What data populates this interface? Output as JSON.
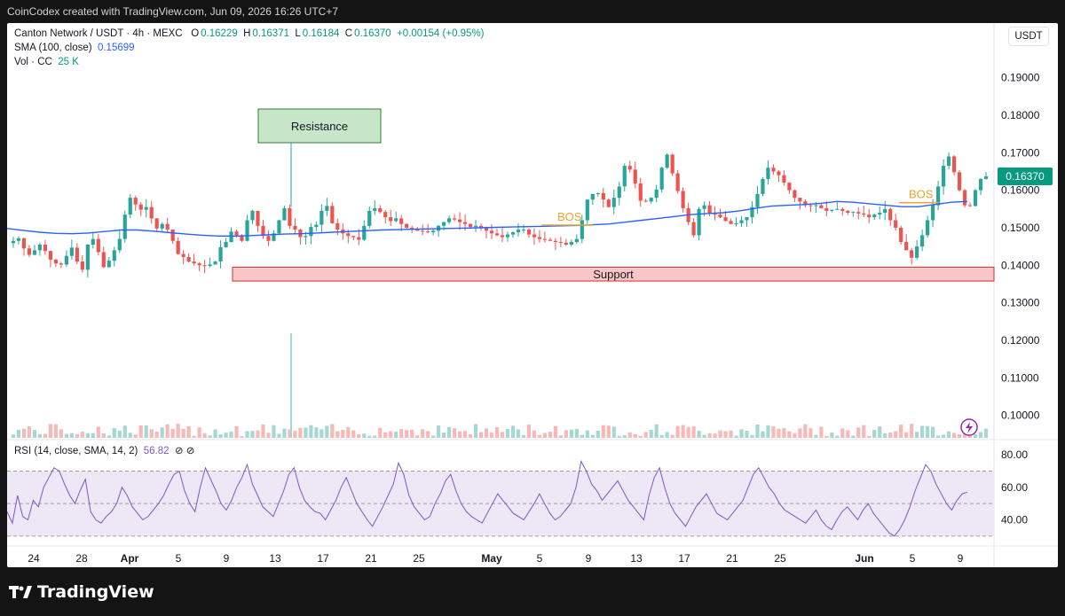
{
  "header": {
    "credit": "CoinCodex created with TradingView.com, Jun 09, 2026 16:26 UTC+7"
  },
  "legend": {
    "symbol": "Canton Network / USDT · 4h · MEXC",
    "o_label": "O",
    "o": "0.16229",
    "h_label": "H",
    "h": "0.16371",
    "l_label": "L",
    "l": "0.16184",
    "c_label": "C",
    "c": "0.16370",
    "change": "+0.00154 (+0.95%)",
    "sma_label": "SMA (100, close)",
    "sma_value": "0.15699",
    "vol_label": "Vol · CC",
    "vol_value": "25 K"
  },
  "currency": "USDT",
  "rsi_legend": {
    "label": "RSI (14, close, SMA, 14, 2)",
    "value": "56.82",
    "icons": "⊘ ⊘"
  },
  "annotations": {
    "resistance": "Resistance",
    "support": "Support",
    "bos1": "BOS",
    "bos2": "BOS"
  },
  "brand": "TradingView",
  "colors": {
    "up": "#26a69a",
    "down": "#ef5350",
    "sma": "#2962ff",
    "rsi": "#7e57c2",
    "rsi_band": "#ede7f6",
    "resistance_fill": "#c8e6c9",
    "resistance_border": "#2e7d32",
    "support_fill": "#f8c6c6",
    "support_border": "#d32f2f",
    "bos": "#f0a32b",
    "price_badge": "#089981"
  },
  "chart_data": [
    {
      "type": "candlestick",
      "title": "Canton Network / USDT · 4h · MEXC",
      "ylim": [
        0.094,
        0.197
      ],
      "y_ticks": [
        "0.19000",
        "0.18000",
        "0.17000",
        "0.16000",
        "0.15000",
        "0.14000",
        "0.13000",
        "0.12000",
        "0.11000",
        "0.10000"
      ],
      "x_ticks": [
        "24",
        "28",
        "Apr",
        "5",
        "9",
        "13",
        "17",
        "21",
        "25",
        "May",
        "5",
        "9",
        "13",
        "17",
        "21",
        "25",
        "Jun",
        "5",
        "9"
      ],
      "last_price_label": "0.16370",
      "close_path": [
        0.1465,
        0.1472,
        0.1445,
        0.1428,
        0.144,
        0.1455,
        0.1438,
        0.1415,
        0.1405,
        0.1402,
        0.1425,
        0.1447,
        0.141,
        0.1388,
        0.1455,
        0.147,
        0.1435,
        0.1395,
        0.1412,
        0.144,
        0.147,
        0.1535,
        0.158,
        0.1562,
        0.1548,
        0.1555,
        0.1525,
        0.1498,
        0.151,
        0.1495,
        0.1465,
        0.143,
        0.1422,
        0.141,
        0.1405,
        0.14,
        0.1398,
        0.1402,
        0.141,
        0.1448,
        0.1462,
        0.149,
        0.148,
        0.1465,
        0.152,
        0.1545,
        0.1505,
        0.1478,
        0.1465,
        0.1485,
        0.152,
        0.1552,
        0.1505,
        0.1495,
        0.1475,
        0.1478,
        0.1502,
        0.1508,
        0.1545,
        0.1558,
        0.1512,
        0.1495,
        0.1485,
        0.1478,
        0.1475,
        0.1468,
        0.1505,
        0.1545,
        0.1552,
        0.1542,
        0.1528,
        0.1518,
        0.1525,
        0.151,
        0.15,
        0.1495,
        0.1492,
        0.149,
        0.1488,
        0.1492,
        0.1505,
        0.1515,
        0.1525,
        0.1522,
        0.1515,
        0.151,
        0.1502,
        0.1505,
        0.15,
        0.1492,
        0.1485,
        0.148,
        0.1475,
        0.1482,
        0.1488,
        0.1495,
        0.1495,
        0.1482,
        0.1475,
        0.147,
        0.1468,
        0.1465,
        0.1462,
        0.146,
        0.1455,
        0.1462,
        0.147,
        0.152,
        0.1575,
        0.159,
        0.1592,
        0.1575,
        0.1555,
        0.158,
        0.161,
        0.1665,
        0.1655,
        0.1618,
        0.1572,
        0.157,
        0.158,
        0.1602,
        0.166,
        0.1695,
        0.1645,
        0.1598,
        0.1552,
        0.1515,
        0.148,
        0.155,
        0.156,
        0.154,
        0.1535,
        0.1528,
        0.1518,
        0.151,
        0.1512,
        0.152,
        0.1528,
        0.1555,
        0.159,
        0.163,
        0.166,
        0.165,
        0.164,
        0.162,
        0.16,
        0.158,
        0.157,
        0.156,
        0.1558,
        0.156,
        0.1552,
        0.1545,
        0.1548,
        0.155,
        0.1545,
        0.154,
        0.1542,
        0.1538,
        0.1535,
        0.1528,
        0.1535,
        0.154,
        0.155,
        0.152,
        0.15,
        0.1462,
        0.144,
        0.142,
        0.145,
        0.148,
        0.152,
        0.156,
        0.161,
        0.1665,
        0.169,
        0.1648,
        0.16,
        0.156,
        0.1558,
        0.16,
        0.163,
        0.1637
      ],
      "sma_100": [
        0.1498,
        0.1493,
        0.1488,
        0.1485,
        0.1484,
        0.1486,
        0.149,
        0.1494,
        0.1494,
        0.1491,
        0.1487,
        0.1483,
        0.148,
        0.1478,
        0.1478,
        0.1479,
        0.1481,
        0.1483,
        0.1484,
        0.1486,
        0.1488,
        0.149,
        0.1492,
        0.1494,
        0.1495,
        0.1496,
        0.1497,
        0.1498,
        0.1499,
        0.15,
        0.1501,
        0.1502,
        0.1503,
        0.1504,
        0.1505,
        0.1506,
        0.1508,
        0.151,
        0.1515,
        0.152,
        0.1525,
        0.153,
        0.1535,
        0.1538,
        0.154,
        0.1545,
        0.1552,
        0.1558,
        0.156,
        0.1562,
        0.1565,
        0.157,
        0.1568,
        0.1564,
        0.156,
        0.1556,
        0.1556,
        0.1562,
        0.1568,
        0.157
      ],
      "volume_spike_label": "volume"
    },
    {
      "type": "line",
      "title": "RSI (14, close, SMA, 14, 2)",
      "ylim": [
        25,
        85
      ],
      "y_ticks": [
        "80.00",
        "60.00",
        "40.00"
      ],
      "bands": [
        30,
        50,
        70
      ],
      "last_value": 56.82,
      "values": [
        45,
        38,
        55,
        42,
        40,
        52,
        48,
        60,
        66,
        72,
        70,
        62,
        55,
        50,
        58,
        65,
        45,
        40,
        38,
        42,
        45,
        50,
        60,
        55,
        48,
        44,
        40,
        42,
        46,
        50,
        55,
        62,
        68,
        70,
        58,
        50,
        45,
        60,
        72,
        65,
        58,
        50,
        46,
        52,
        60,
        66,
        74,
        62,
        55,
        48,
        45,
        42,
        50,
        58,
        68,
        72,
        60,
        52,
        48,
        45,
        44,
        40,
        46,
        52,
        60,
        66,
        58,
        50,
        45,
        40,
        36,
        42,
        48,
        55,
        62,
        75,
        68,
        55,
        48,
        44,
        40,
        42,
        50,
        56,
        64,
        68,
        58,
        50,
        45,
        42,
        40,
        38,
        44,
        50,
        56,
        52,
        48,
        44,
        42,
        40,
        45,
        50,
        56,
        50,
        44,
        40,
        42,
        46,
        50,
        60,
        76,
        70,
        62,
        58,
        52,
        56,
        60,
        64,
        58,
        52,
        48,
        44,
        40,
        55,
        66,
        72,
        60,
        50,
        44,
        40,
        36,
        42,
        48,
        52,
        56,
        50,
        44,
        42,
        40,
        44,
        48,
        52,
        60,
        68,
        72,
        66,
        60,
        56,
        50,
        46,
        44,
        42,
        40,
        38,
        42,
        46,
        40,
        36,
        34,
        40,
        45,
        48,
        44,
        40,
        46,
        50,
        44,
        40,
        36,
        32,
        30,
        34,
        40,
        48,
        58,
        66,
        74,
        70,
        62,
        56,
        50,
        46,
        52,
        56,
        57
      ]
    }
  ]
}
